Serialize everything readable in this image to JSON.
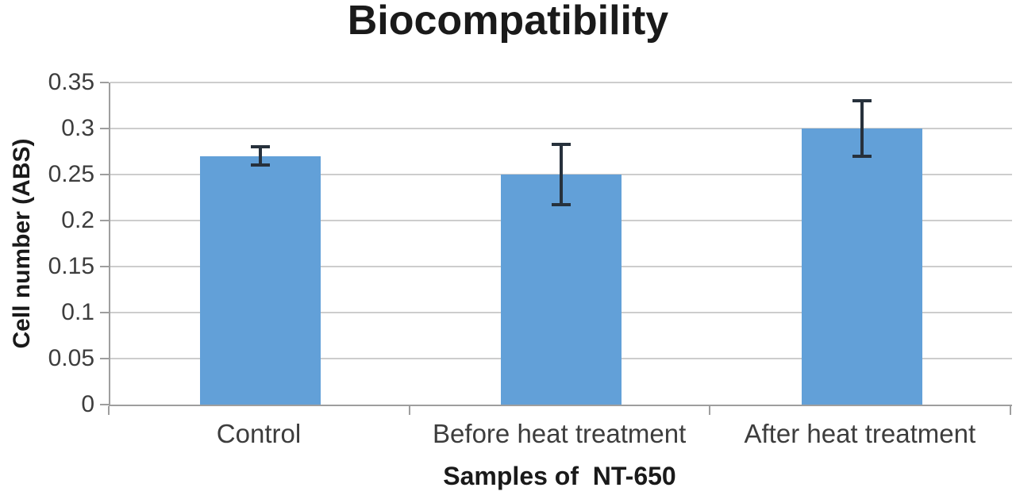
{
  "chart_data": {
    "type": "bar",
    "title": "Biocompatibility",
    "xlabel": "Samples of  NT-650",
    "ylabel": "Cell number (ABS)",
    "categories": [
      "Control",
      "Before heat treatment",
      "After heat treatment"
    ],
    "values": [
      0.27,
      0.25,
      0.3
    ],
    "error_bars": [
      0.01,
      0.033,
      0.03
    ],
    "ylim": [
      0,
      0.35
    ],
    "yticks": [
      0,
      0.05,
      0.1,
      0.15,
      0.2,
      0.25,
      0.3,
      0.35
    ],
    "ytick_labels": [
      "0",
      "0.05",
      "0.1",
      "0.15",
      "0.2",
      "0.25",
      "0.3",
      "0.35"
    ],
    "grid": true,
    "legend": false,
    "bar_color": "#62A0D8",
    "error_bar_color": "#27313C",
    "gridline_color": "#CDCDCD",
    "axis_color": "#9E9E9E",
    "tick_label_color": "#3D3D3D",
    "title_color": "#1A1A1A"
  }
}
